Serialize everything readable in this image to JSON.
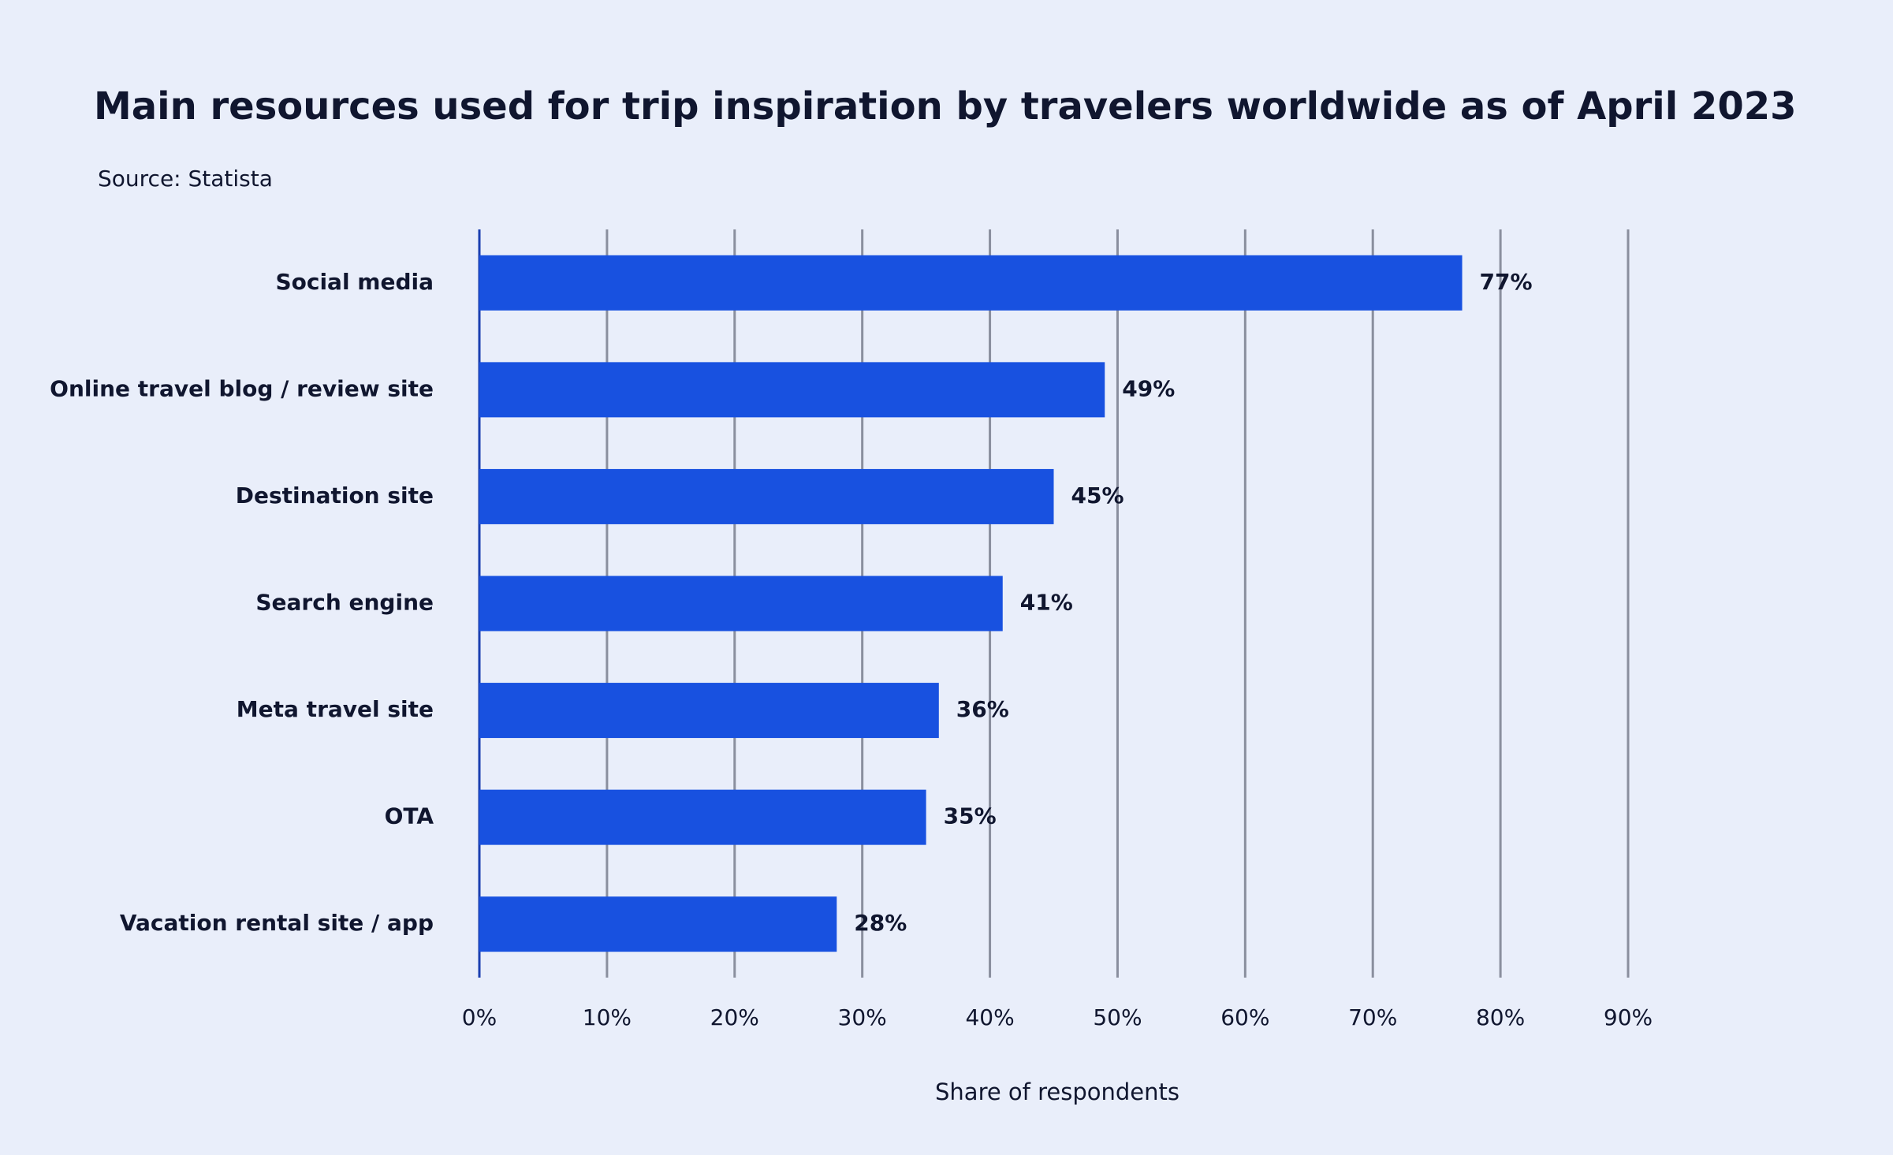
{
  "chart_data": {
    "type": "hbar",
    "title": "Main resources used for trip inspiration by travelers worldwide as of April 2023",
    "subtitle": "Source: Statista",
    "xlabel": "Share of respondents",
    "categories": [
      "Social media",
      "Online travel blog / review site",
      "Destination site",
      "Search engine",
      "Meta travel site",
      "OTA",
      "Vacation rental site / app"
    ],
    "values": [
      77,
      49,
      45,
      41,
      36,
      35,
      28
    ],
    "value_labels": [
      "77%",
      "49%",
      "45%",
      "41%",
      "36%",
      "35%",
      "28%"
    ],
    "color": "#1851e0",
    "xlim": [
      0,
      90
    ],
    "xticks": [
      {
        "value": 0,
        "label": "0%"
      },
      {
        "value": 10,
        "label": "10%"
      },
      {
        "value": 20,
        "label": "20%"
      },
      {
        "value": 30,
        "label": "30%"
      },
      {
        "value": 40,
        "label": "40%"
      },
      {
        "value": 50,
        "label": "50%"
      },
      {
        "value": 60,
        "label": "60%"
      },
      {
        "value": 70,
        "label": "70%"
      },
      {
        "value": 80,
        "label": "80%"
      },
      {
        "value": 90,
        "label": "90%"
      }
    ],
    "grid": true
  }
}
